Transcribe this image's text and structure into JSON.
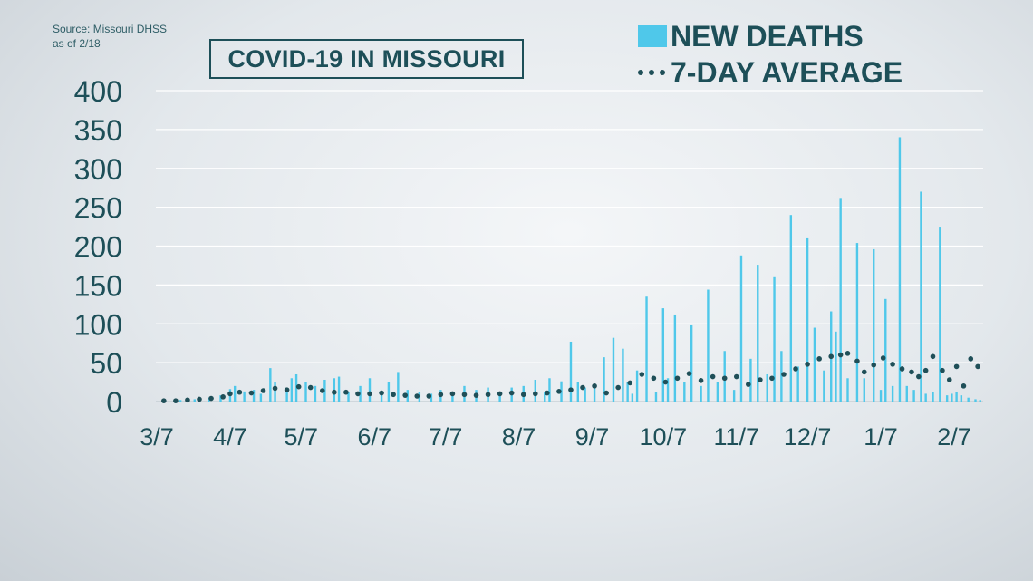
{
  "source": {
    "line1": "Source: Missouri DHSS",
    "line2": "as of 2/18"
  },
  "title": "COVID-19 IN MISSOURI",
  "legend": {
    "bars": "NEW DEATHS",
    "dots": "7-DAY AVERAGE"
  },
  "colors": {
    "bars": "#4fc8ea",
    "dots": "#1f4f58",
    "text": "#1d4f58",
    "grid": "#ffffff"
  },
  "chart_data": {
    "type": "bar",
    "title": "COVID-19 IN MISSOURI",
    "xlabel": "",
    "ylabel": "",
    "ylim": [
      0,
      400
    ],
    "yticks": [
      "0",
      "50",
      "100",
      "150",
      "200",
      "250",
      "300",
      "350",
      "400"
    ],
    "xticks": [
      "3/7",
      "4/7",
      "5/7",
      "6/7",
      "7/7",
      "8/7",
      "9/7",
      "10/7",
      "11/7",
      "12/7",
      "1/7",
      "2/7"
    ],
    "grid": true,
    "legend_position": "top-right",
    "series": [
      {
        "name": "NEW DEATHS",
        "type": "bar",
        "x": [
          "3/17",
          "3/23",
          "3/29",
          "4/3",
          "4/7",
          "4/9",
          "4/13",
          "4/17",
          "4/20",
          "4/24",
          "4/26",
          "5/1",
          "5/3",
          "5/5",
          "5/9",
          "5/13",
          "5/17",
          "5/21",
          "5/23",
          "5/27",
          "6/1",
          "6/5",
          "6/10",
          "6/13",
          "6/17",
          "6/21",
          "6/26",
          "7/1",
          "7/5",
          "7/10",
          "7/15",
          "7/20",
          "7/25",
          "7/30",
          "8/4",
          "8/9",
          "8/14",
          "8/18",
          "8/20",
          "8/25",
          "8/29",
          "9/1",
          "9/4",
          "9/8",
          "9/12",
          "9/16",
          "9/20",
          "9/22",
          "9/24",
          "9/26",
          "9/30",
          "10/4",
          "10/7",
          "10/9",
          "10/12",
          "10/16",
          "10/19",
          "10/23",
          "10/26",
          "10/30",
          "11/2",
          "11/6",
          "11/9",
          "11/13",
          "11/16",
          "11/20",
          "11/23",
          "11/26",
          "11/30",
          "12/3",
          "12/7",
          "12/10",
          "12/14",
          "12/17",
          "12/19",
          "12/21",
          "12/24",
          "12/28",
          "12/31",
          "1/4",
          "1/7",
          "1/9",
          "1/12",
          "1/15",
          "1/18",
          "1/21",
          "1/24",
          "1/26",
          "1/29",
          "2/1",
          "2/4",
          "2/6",
          "2/8",
          "2/10",
          "2/13",
          "2/16",
          "2/18"
        ],
        "values": [
          2,
          3,
          5,
          8,
          16,
          20,
          13,
          15,
          10,
          43,
          25,
          18,
          30,
          35,
          25,
          20,
          28,
          30,
          32,
          12,
          20,
          30,
          14,
          25,
          38,
          15,
          12,
          10,
          15,
          12,
          20,
          15,
          18,
          12,
          18,
          20,
          28,
          12,
          30,
          26,
          77,
          25,
          18,
          22,
          57,
          82,
          68,
          25,
          10,
          40,
          135,
          12,
          120,
          30,
          112,
          25,
          98,
          20,
          144,
          25,
          65,
          15,
          188,
          55,
          176,
          35,
          160,
          65,
          240,
          45,
          210,
          95,
          40,
          116,
          90,
          262,
          30,
          204,
          30,
          196,
          15,
          132,
          20,
          340,
          20,
          15,
          270,
          10,
          12,
          225,
          8,
          10,
          12,
          8,
          5,
          3,
          2
        ]
      },
      {
        "name": "7-DAY AVERAGE",
        "type": "scatter",
        "x": [
          "3/10",
          "3/15",
          "3/20",
          "3/25",
          "3/30",
          "4/4",
          "4/7",
          "4/11",
          "4/16",
          "4/21",
          "4/26",
          "5/1",
          "5/6",
          "5/11",
          "5/16",
          "5/21",
          "5/26",
          "5/31",
          "6/5",
          "6/10",
          "6/15",
          "6/20",
          "6/25",
          "6/30",
          "7/5",
          "7/10",
          "7/15",
          "7/20",
          "7/25",
          "7/30",
          "8/4",
          "8/9",
          "8/14",
          "8/19",
          "8/24",
          "8/29",
          "9/3",
          "9/8",
          "9/13",
          "9/18",
          "9/23",
          "9/28",
          "10/3",
          "10/8",
          "10/13",
          "10/18",
          "10/23",
          "10/28",
          "11/2",
          "11/7",
          "11/12",
          "11/17",
          "11/22",
          "11/27",
          "12/2",
          "12/7",
          "12/12",
          "12/17",
          "12/21",
          "12/24",
          "12/28",
          "12/31",
          "1/4",
          "1/8",
          "1/12",
          "1/16",
          "1/20",
          "1/23",
          "1/26",
          "1/29",
          "2/2",
          "2/5",
          "2/8",
          "2/11",
          "2/14",
          "2/17"
        ],
        "values": [
          1,
          1,
          2,
          3,
          4,
          6,
          10,
          12,
          11,
          14,
          17,
          15,
          19,
          18,
          14,
          12,
          12,
          10,
          10,
          11,
          9,
          8,
          7,
          7,
          9,
          10,
          9,
          8,
          9,
          10,
          11,
          9,
          10,
          11,
          13,
          15,
          18,
          20,
          11,
          18,
          24,
          35,
          30,
          25,
          30,
          36,
          27,
          32,
          30,
          32,
          22,
          28,
          30,
          35,
          42,
          48,
          55,
          58,
          60,
          62,
          52,
          38,
          47,
          56,
          48,
          42,
          38,
          32,
          40,
          58,
          40,
          28,
          45,
          20,
          55,
          45
        ]
      }
    ]
  }
}
